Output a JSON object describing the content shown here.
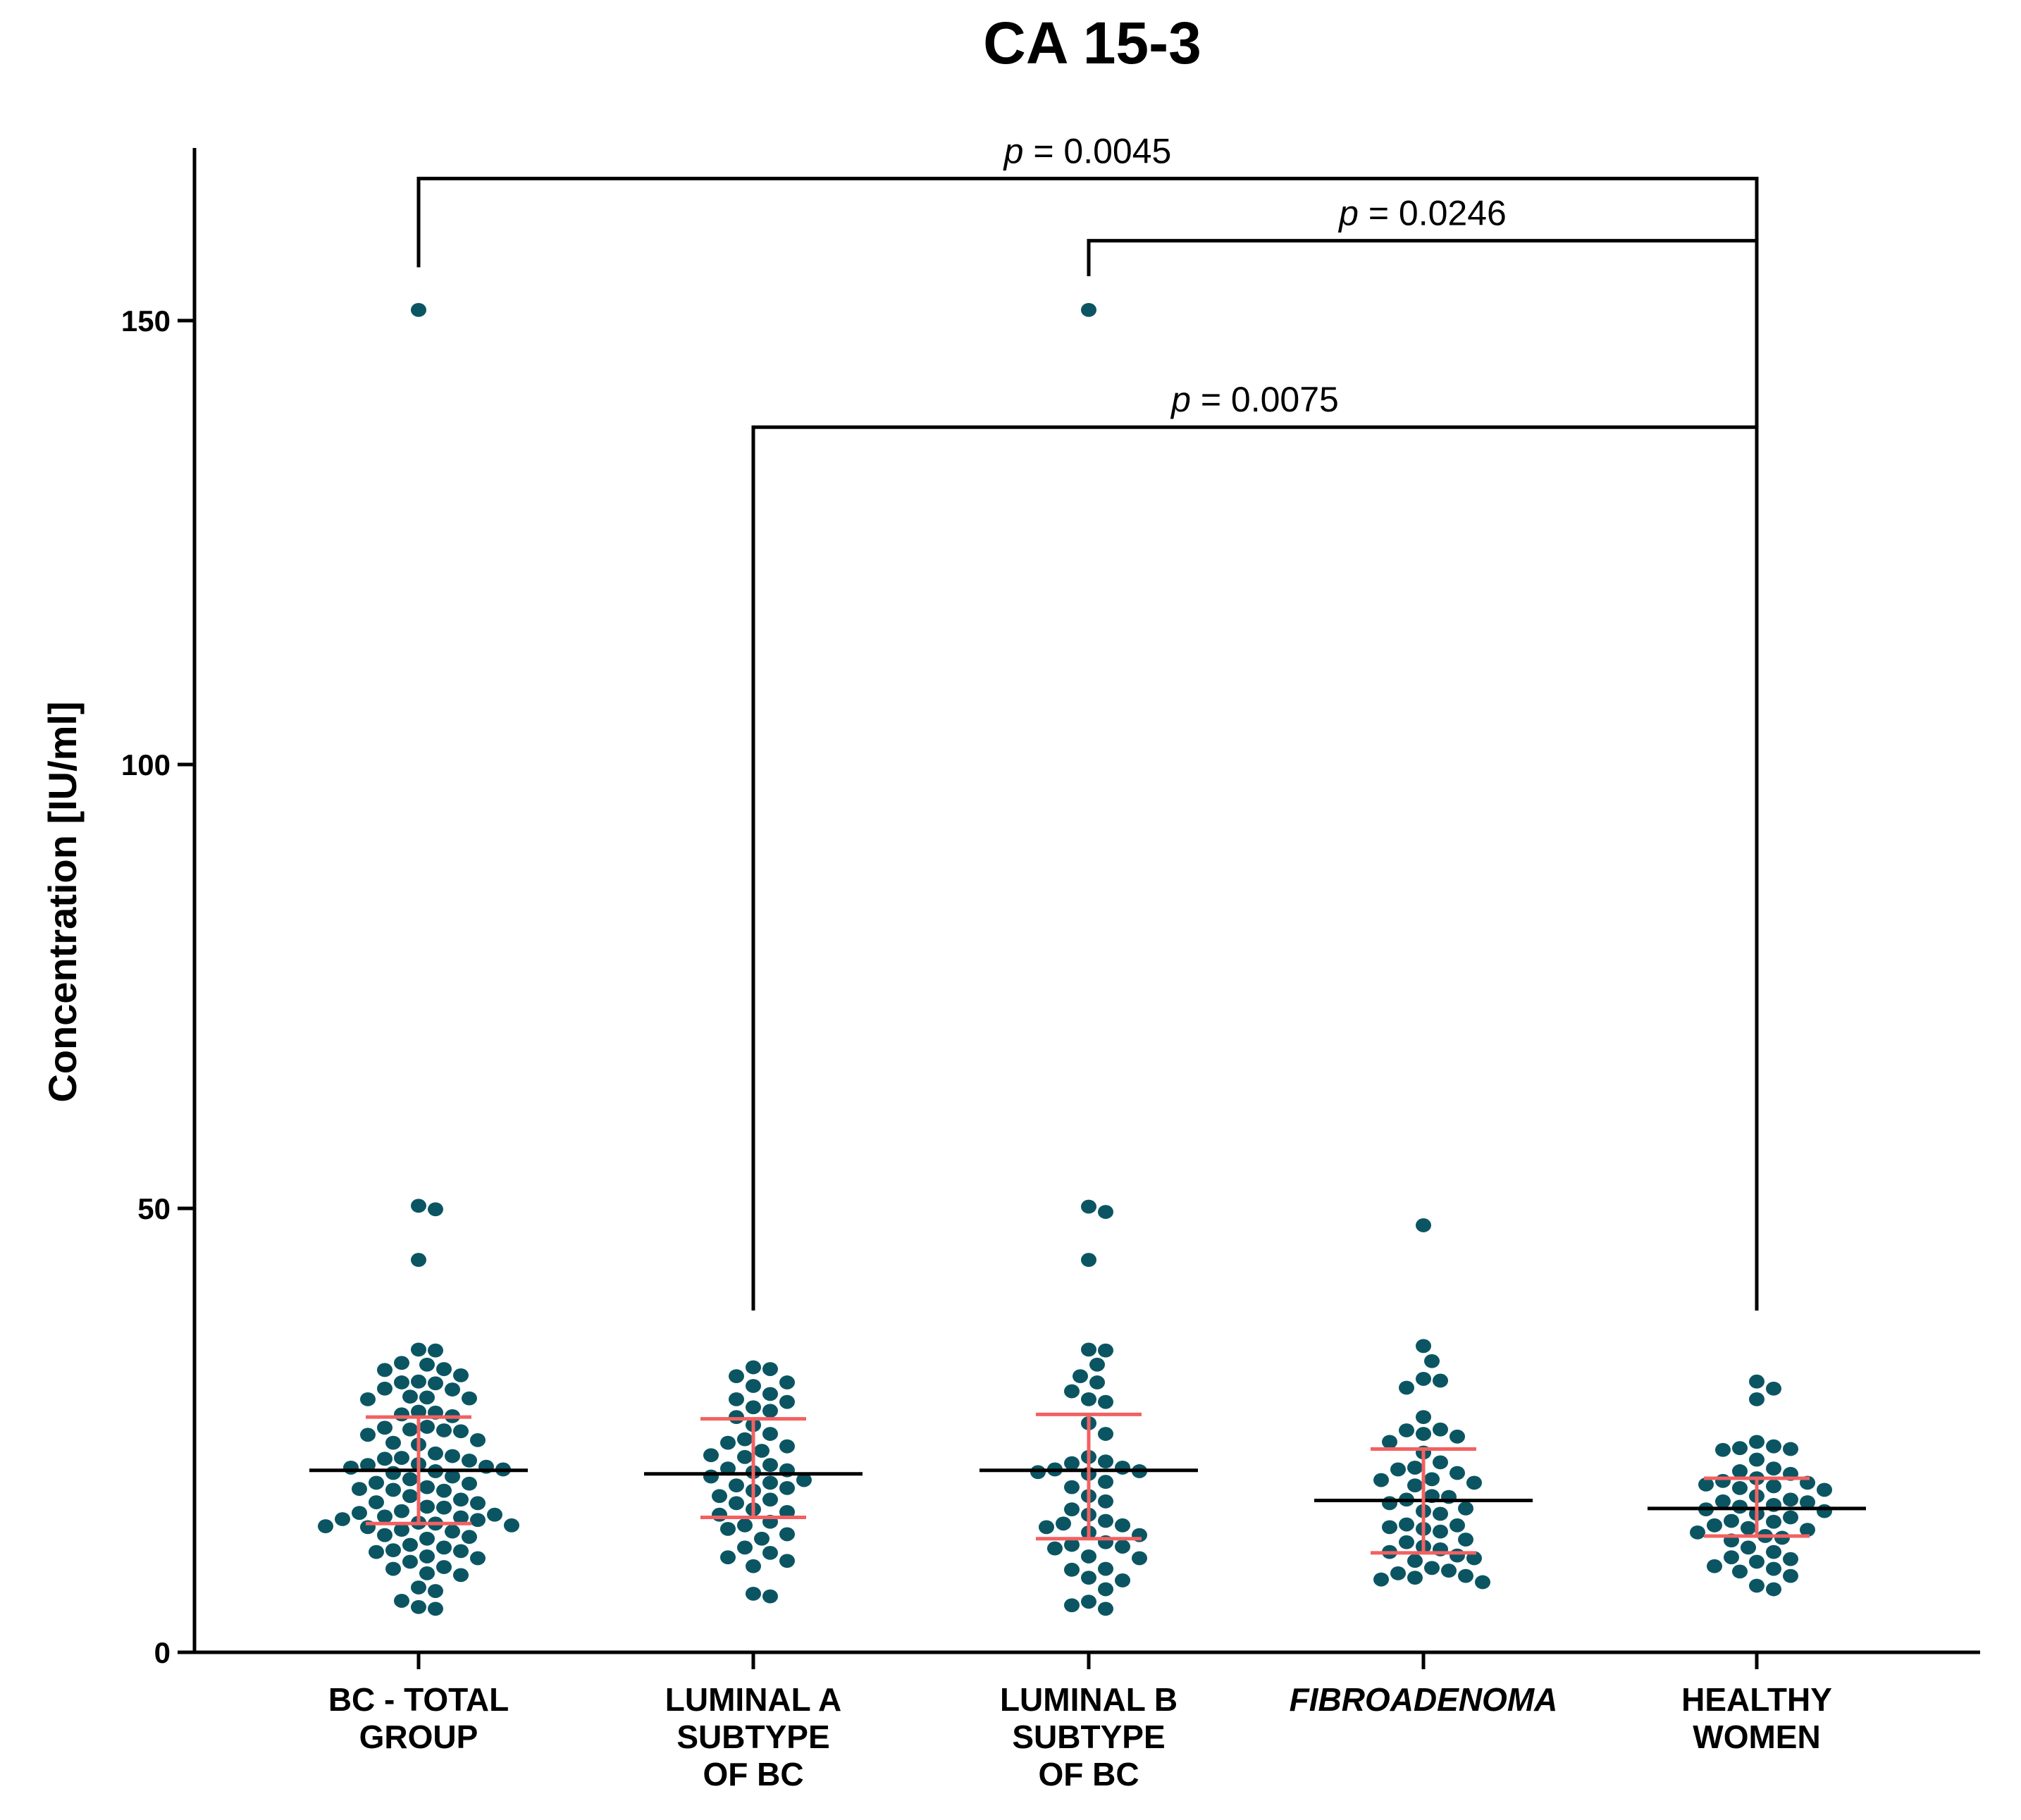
{
  "chart_data": {
    "type": "scatter",
    "title": "CA 15-3",
    "xlabel": "",
    "ylabel": "Concentration [IU/ml]",
    "ylim": [
      0,
      170
    ],
    "yticks": [
      0,
      50,
      100,
      150
    ],
    "categories": [
      {
        "lines": [
          "BC - TOTAL",
          "GROUP"
        ],
        "italic": false
      },
      {
        "lines": [
          "LUMINAL A",
          "SUBTYPE",
          "OF BC"
        ],
        "italic": false
      },
      {
        "lines": [
          "LUMINAL B",
          "SUBTYPE",
          "OF BC"
        ],
        "italic": false
      },
      {
        "lines": [
          "FIBROADENOMA"
        ],
        "italic": true
      },
      {
        "lines": [
          "HEALTHY",
          "WOMEN"
        ],
        "italic": false
      }
    ],
    "groups": [
      {
        "name": "BC - TOTAL GROUP",
        "median": 20.5,
        "q1": 14.5,
        "q3": 26.5,
        "points": [
          151.2,
          50.3,
          49.9,
          44.2,
          34.1,
          34.0,
          32.6,
          32.4,
          31.9,
          31.8,
          31.2,
          30.5,
          30.4,
          30.3,
          29.7,
          29.6,
          28.8,
          28.7,
          28.6,
          28.5,
          27.1,
          27.0,
          26.8,
          26.6,
          25.4,
          25.3,
          25.1,
          25.0,
          24.9,
          24.5,
          23.9,
          23.6,
          23.4,
          22.4,
          22.1,
          21.9,
          21.8,
          21.6,
          21.2,
          21.1,
          20.9,
          20.8,
          20.6,
          20.4,
          20.2,
          19.8,
          19.5,
          19.1,
          19.0,
          18.6,
          18.4,
          18.3,
          18.2,
          17.6,
          17.2,
          16.9,
          16.8,
          16.4,
          16.3,
          15.9,
          15.7,
          15.5,
          15.3,
          15.2,
          15.0,
          14.9,
          14.6,
          14.5,
          14.3,
          14.2,
          14.1,
          13.8,
          13.6,
          13.2,
          13.0,
          12.8,
          12.1,
          11.8,
          11.5,
          11.4,
          11.3,
          10.8,
          10.6,
          10.2,
          9.6,
          9.4,
          8.9,
          8.7,
          7.3,
          6.9,
          5.8,
          5.1,
          4.9
        ]
      },
      {
        "name": "LUMINAL A SUBTYPE OF BC",
        "median": 20.1,
        "q1": 15.2,
        "q3": 26.3,
        "points": [
          32.1,
          31.9,
          31.1,
          30.4,
          30.0,
          29.1,
          28.5,
          28.2,
          27.6,
          27.2,
          26.5,
          25.6,
          24.6,
          24.0,
          23.6,
          23.2,
          22.7,
          22.2,
          22.0,
          21.1,
          20.7,
          20.5,
          20.3,
          19.8,
          19.4,
          19.1,
          18.8,
          18.5,
          18.2,
          17.6,
          17.2,
          16.8,
          16.1,
          15.8,
          15.5,
          14.7,
          14.3,
          13.9,
          13.3,
          12.8,
          11.8,
          11.2,
          10.7,
          10.3,
          9.7,
          6.6,
          6.3
        ]
      },
      {
        "name": "LUMINAL B SUBTYPE OF BC",
        "median": 20.5,
        "q1": 12.8,
        "q3": 26.8,
        "points": [
          151.2,
          50.2,
          49.6,
          44.2,
          34.1,
          34.0,
          32.4,
          31.1,
          30.4,
          29.4,
          28.5,
          28.2,
          25.8,
          24.6,
          22.0,
          21.5,
          21.3,
          20.8,
          20.6,
          20.4,
          20.3,
          20.1,
          19.2,
          18.6,
          17.6,
          17.0,
          16.1,
          15.5,
          14.8,
          14.5,
          14.3,
          14.1,
          13.5,
          13.2,
          12.4,
          12.1,
          11.9,
          11.7,
          10.8,
          10.6,
          9.4,
          9.3,
          8.4,
          8.1,
          7.1,
          5.7,
          5.3,
          4.9
        ]
      },
      {
        "name": "FIBROADENOMA",
        "median": 17.1,
        "q1": 11.2,
        "q3": 22.9,
        "points": [
          48.1,
          34.5,
          32.8,
          30.8,
          30.6,
          29.8,
          26.5,
          25.1,
          25.0,
          24.6,
          24.3,
          23.7,
          22.5,
          21.4,
          20.8,
          20.6,
          20.2,
          19.5,
          19.4,
          19.1,
          18.8,
          17.6,
          17.5,
          17.2,
          16.8,
          16.2,
          15.9,
          15.6,
          14.4,
          14.3,
          14.1,
          13.9,
          13.6,
          12.7,
          12.4,
          11.9,
          11.6,
          11.3,
          10.9,
          10.6,
          10.3,
          9.5,
          9.2,
          8.9,
          8.6,
          8.4,
          8.2,
          7.9
        ]
      },
      {
        "name": "HEALTHY WOMEN",
        "median": 16.2,
        "q1": 13.1,
        "q3": 19.6,
        "points": [
          30.5,
          29.7,
          28.5,
          23.7,
          23.2,
          23.0,
          22.9,
          22.8,
          21.7,
          20.7,
          20.4,
          20.1,
          19.6,
          19.3,
          19.1,
          18.9,
          18.7,
          18.5,
          18.3,
          17.6,
          17.2,
          17.0,
          16.9,
          16.6,
          16.4,
          16.1,
          15.9,
          15.6,
          15.2,
          14.8,
          14.7,
          14.3,
          14.0,
          13.8,
          13.5,
          13.1,
          12.9,
          12.6,
          11.8,
          11.3,
          10.7,
          10.5,
          10.2,
          9.7,
          9.4,
          9.1,
          8.6,
          7.5,
          7.1
        ]
      }
    ],
    "comparisons": [
      {
        "from": 0,
        "to": 4,
        "p_label": "p",
        "p_value": "= 0.0045",
        "bar_y": 166.0,
        "left_drop_y": 156.0,
        "right_drop_y": 38.5
      },
      {
        "from": 2,
        "to": 4,
        "p_label": "p",
        "p_value": "= 0.0246",
        "bar_y": 159.0,
        "left_drop_y": 155.0,
        "right_drop_y": 38.5
      },
      {
        "from": 1,
        "to": 4,
        "p_label": "p",
        "p_value": "= 0.0075",
        "bar_y": 138.0,
        "left_drop_y": 38.5,
        "right_drop_y": 38.5
      }
    ],
    "colors": {
      "points": "#0b5563",
      "median": "#000000",
      "iqr": "#f26161",
      "axis": "#000000"
    }
  }
}
